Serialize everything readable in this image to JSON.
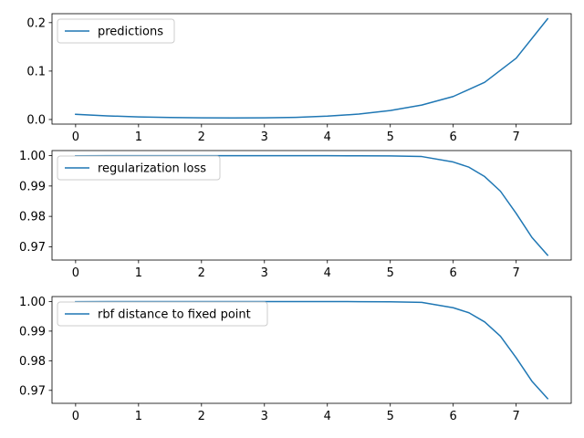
{
  "chart_data": [
    {
      "type": "line",
      "legend_position": "upper-left",
      "grid": false,
      "xlim": [
        -0.375,
        7.875
      ],
      "ylim": [
        -0.0095,
        0.2185
      ],
      "x_ticks": [
        0,
        1,
        2,
        3,
        4,
        5,
        6,
        7
      ],
      "y_ticks": [
        0.0,
        0.1,
        0.2
      ],
      "x_tick_labels": [
        "0",
        "1",
        "2",
        "3",
        "4",
        "5",
        "6",
        "7"
      ],
      "y_tick_labels": [
        "0.0",
        "0.1",
        "0.2"
      ],
      "series": [
        {
          "name": "predictions",
          "color": "#1f77b4",
          "x": [
            0,
            0.5,
            1,
            1.5,
            2,
            2.5,
            3,
            3.5,
            4,
            4.5,
            5,
            5.5,
            6,
            6.5,
            7,
            7.5
          ],
          "y": [
            0.0107,
            0.0075,
            0.0054,
            0.0042,
            0.0035,
            0.0032,
            0.0034,
            0.0045,
            0.0069,
            0.0112,
            0.0185,
            0.0298,
            0.0475,
            0.0768,
            0.1265,
            0.208
          ]
        }
      ]
    },
    {
      "type": "line",
      "legend_position": "upper-left",
      "grid": false,
      "xlim": [
        -0.375,
        7.875
      ],
      "ylim": [
        0.96562,
        1.00167
      ],
      "x_ticks": [
        0,
        1,
        2,
        3,
        4,
        5,
        6,
        7
      ],
      "y_ticks": [
        0.97,
        0.98,
        0.99,
        1.0
      ],
      "x_tick_labels": [
        "0",
        "1",
        "2",
        "3",
        "4",
        "5",
        "6",
        "7"
      ],
      "y_tick_labels": [
        "0.97",
        "0.98",
        "0.99",
        "1.00"
      ],
      "series": [
        {
          "name": "regularization loss",
          "color": "#1f77b4",
          "x": [
            0,
            0.5,
            1,
            1.5,
            2,
            2.5,
            3,
            3.5,
            4,
            4.5,
            5,
            5.5,
            6,
            6.25,
            6.5,
            6.75,
            7,
            7.25,
            7.5
          ],
          "y": [
            0.99994,
            0.99997,
            0.99998,
            0.99999,
            0.99999,
            0.99999,
            0.99999,
            0.99999,
            0.99998,
            0.99995,
            0.9999,
            0.9997,
            0.9979,
            0.9962,
            0.9931,
            0.9883,
            0.981,
            0.9731,
            0.9672
          ]
        }
      ]
    },
    {
      "type": "line",
      "legend_position": "upper-left",
      "grid": false,
      "xlim": [
        -0.375,
        7.875
      ],
      "ylim": [
        0.96562,
        1.00167
      ],
      "x_ticks": [
        0,
        1,
        2,
        3,
        4,
        5,
        6,
        7
      ],
      "y_ticks": [
        0.97,
        0.98,
        0.99,
        1.0
      ],
      "x_tick_labels": [
        "0",
        "1",
        "2",
        "3",
        "4",
        "5",
        "6",
        "7"
      ],
      "y_tick_labels": [
        "0.97",
        "0.98",
        "0.99",
        "1.00"
      ],
      "series": [
        {
          "name": "rbf distance to fixed point",
          "color": "#1f77b4",
          "x": [
            0,
            0.5,
            1,
            1.5,
            2,
            2.5,
            3,
            3.5,
            4,
            4.5,
            5,
            5.5,
            6,
            6.25,
            6.5,
            6.75,
            7,
            7.25,
            7.5
          ],
          "y": [
            0.99994,
            0.99997,
            0.99998,
            0.99999,
            0.99999,
            0.99999,
            0.99999,
            0.99999,
            0.99998,
            0.99995,
            0.9999,
            0.9997,
            0.9979,
            0.9962,
            0.9931,
            0.9883,
            0.981,
            0.9731,
            0.9672
          ]
        }
      ]
    }
  ]
}
